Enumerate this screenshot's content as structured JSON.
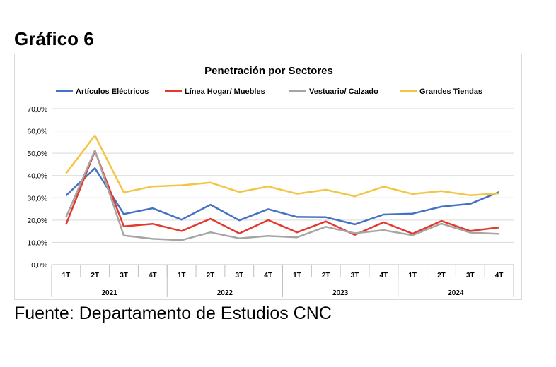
{
  "heading": "Gráfico 6",
  "source": "Fuente: Departamento de Estudios CNC",
  "chart_data": {
    "type": "line",
    "title": "Penetración por Sectores",
    "legend_position": "top",
    "grid": true,
    "ylim": [
      0,
      70
    ],
    "yticks": [
      "0,0%",
      "10,0%",
      "20,0%",
      "30,0%",
      "40,0%",
      "50,0%",
      "60,0%",
      "70,0%"
    ],
    "categories": [
      "1T",
      "2T",
      "3T",
      "4T",
      "1T",
      "2T",
      "3T",
      "4T",
      "1T",
      "2T",
      "3T",
      "4T",
      "1T",
      "2T",
      "3T",
      "4T"
    ],
    "years": [
      "2021",
      "2022",
      "2023",
      "2024"
    ],
    "series": [
      {
        "name": "Artículos Eléctricos",
        "color": "#4472C4",
        "values": [
          31.0,
          43.3,
          22.7,
          25.3,
          20.2,
          26.9,
          19.9,
          24.9,
          21.4,
          21.3,
          18.1,
          22.5,
          22.9,
          26.0,
          27.3,
          32.6
        ]
      },
      {
        "name": "Línea Hogar/ Muebles",
        "color": "#E23A2E",
        "values": [
          18.1,
          51.0,
          17.2,
          18.3,
          15.1,
          20.6,
          14.0,
          20.0,
          14.5,
          19.4,
          13.4,
          19.0,
          13.9,
          19.6,
          15.1,
          16.7
        ]
      },
      {
        "name": "Vestuario/ Calzado",
        "color": "#A5A5A5",
        "values": [
          21.3,
          51.3,
          13.1,
          11.6,
          11.0,
          14.5,
          11.8,
          12.9,
          12.3,
          17.0,
          14.1,
          15.5,
          13.2,
          18.4,
          14.4,
          13.8
        ]
      },
      {
        "name": "Grandes Tiendas",
        "color": "#F4C542",
        "values": [
          41.0,
          58.0,
          32.4,
          35.1,
          35.6,
          36.8,
          32.6,
          35.1,
          31.8,
          33.6,
          30.7,
          35.0,
          31.7,
          33.0,
          31.1,
          32.0
        ]
      }
    ]
  }
}
